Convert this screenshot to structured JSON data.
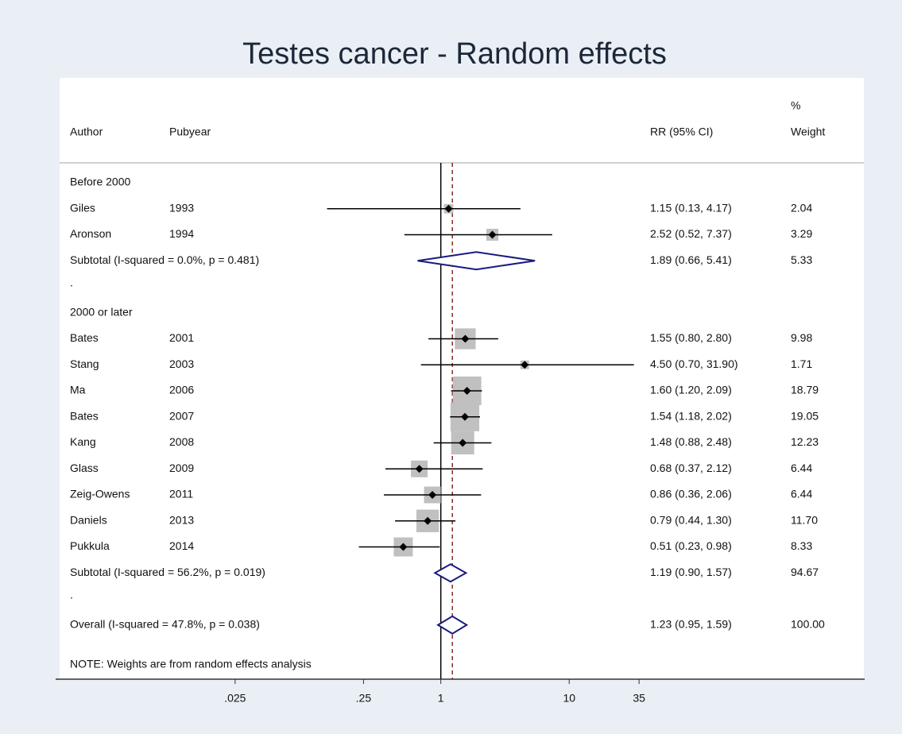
{
  "chart_data": {
    "type": "forest",
    "title": "Testes cancer - Random effects",
    "headers": {
      "author": "Author",
      "pubyear": "Pubyear",
      "estimate": "RR (95% CI)",
      "weight": [
        "%",
        "Weight"
      ]
    },
    "groups": [
      {
        "label": "Before 2000",
        "studies": [
          {
            "author": "Giles",
            "year": "1993",
            "rr": 1.15,
            "lo": 0.13,
            "hi": 4.17,
            "ci_label": "1.15 (0.13, 4.17)",
            "weight": 2.04
          },
          {
            "author": "Aronson",
            "year": "1994",
            "rr": 2.52,
            "lo": 0.52,
            "hi": 7.37,
            "ci_label": "2.52 (0.52, 7.37)",
            "weight": 3.29
          }
        ],
        "subtotal": {
          "label": "Subtotal  (I-squared = 0.0%, p = 0.481)",
          "rr": 1.89,
          "lo": 0.66,
          "hi": 5.41,
          "ci_label": "1.89 (0.66, 5.41)",
          "weight": 5.33
        },
        "spacer": "."
      },
      {
        "label": "2000 or later",
        "studies": [
          {
            "author": "Bates",
            "year": "2001",
            "rr": 1.55,
            "lo": 0.8,
            "hi": 2.8,
            "ci_label": "1.55 (0.80, 2.80)",
            "weight": 9.98
          },
          {
            "author": "Stang",
            "year": "2003",
            "rr": 4.5,
            "lo": 0.7,
            "hi": 31.9,
            "ci_label": "4.50 (0.70, 31.90)",
            "weight": 1.71
          },
          {
            "author": "Ma",
            "year": "2006",
            "rr": 1.6,
            "lo": 1.2,
            "hi": 2.09,
            "ci_label": "1.60 (1.20, 2.09)",
            "weight": 18.79
          },
          {
            "author": "Bates",
            "year": "2007",
            "rr": 1.54,
            "lo": 1.18,
            "hi": 2.02,
            "ci_label": "1.54 (1.18, 2.02)",
            "weight": 19.05
          },
          {
            "author": "Kang",
            "year": "2008",
            "rr": 1.48,
            "lo": 0.88,
            "hi": 2.48,
            "ci_label": "1.48 (0.88, 2.48)",
            "weight": 12.23
          },
          {
            "author": "Glass",
            "year": "2009",
            "rr": 0.68,
            "lo": 0.37,
            "hi": 2.12,
            "ci_label": "0.68 (0.37, 2.12)",
            "weight": 6.44
          },
          {
            "author": "Zeig-Owens",
            "year": "2011",
            "rr": 0.86,
            "lo": 0.36,
            "hi": 2.06,
            "ci_label": "0.86 (0.36, 2.06)",
            "weight": 6.44
          },
          {
            "author": "Daniels",
            "year": "2013",
            "rr": 0.79,
            "lo": 0.44,
            "hi": 1.3,
            "ci_label": "0.79 (0.44, 1.30)",
            "weight": {
              "value": 11.7,
              "label": "11.70"
            }
          },
          {
            "author": "Pukkula",
            "year": "2014",
            "rr": 0.51,
            "lo": 0.23,
            "hi": 0.98,
            "ci_label": "0.51 (0.23, 0.98)",
            "weight": 8.33
          }
        ],
        "subtotal": {
          "label": "Subtotal  (I-squared = 56.2%, p = 0.019)",
          "rr": 1.19,
          "lo": 0.9,
          "hi": 1.57,
          "ci_label": "1.19 (0.90, 1.57)",
          "weight": 94.67
        },
        "spacer": "."
      }
    ],
    "overall": {
      "label": "Overall  (I-squared = 47.8%, p = 0.038)",
      "rr": 1.23,
      "lo": 0.95,
      "hi": 1.59,
      "ci_label": "1.23 (0.95, 1.59)",
      "weight": {
        "value": 100,
        "label": "100.00"
      }
    },
    "note": "NOTE: Weights are from random effects analysis",
    "xscale": "log",
    "xlim": [
      0.001,
      2000
    ],
    "xticks": [
      {
        "value": 0.025,
        "label": ".025"
      },
      {
        "value": 0.25,
        "label": ".25"
      },
      1,
      10,
      35
    ],
    "box_color": "#c0c0c0",
    "diamond_color": "#1a1a80",
    "line_color": "#8b2a2a"
  }
}
